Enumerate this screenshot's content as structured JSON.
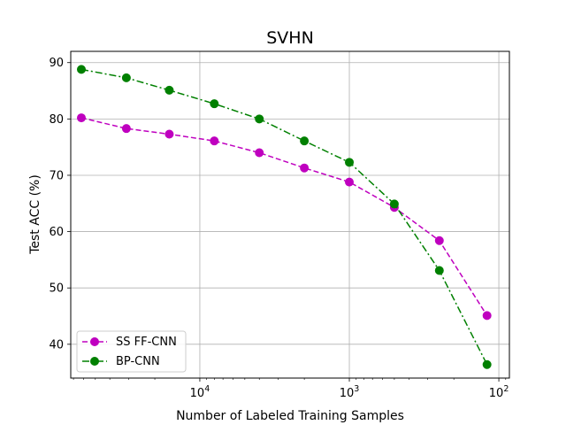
{
  "chart_data": {
    "type": "line",
    "title": "SVHN",
    "xlabel": "Number of Labeled Training Samples",
    "ylabel": "Test ACC (%)",
    "xscale": "log",
    "x_inverted": true,
    "xlim": [
      73000,
      85
    ],
    "ylim": [
      34,
      92
    ],
    "grid": true,
    "legend_position": "lower-left",
    "xticks": [
      {
        "value": 10000,
        "base": "10",
        "exp": "4"
      },
      {
        "value": 1000,
        "base": "10",
        "exp": "3"
      },
      {
        "value": 100,
        "base": "10",
        "exp": "2"
      }
    ],
    "yticks": [
      40,
      50,
      60,
      70,
      80,
      90
    ],
    "x": [
      62000,
      31000,
      16000,
      8000,
      4000,
      2000,
      1000,
      500,
      250,
      120
    ],
    "series": [
      {
        "name": "SS FF-CNN",
        "color": "#bf00bf",
        "linestyle": "dashed",
        "values": [
          80.2,
          78.3,
          77.3,
          76.1,
          74.0,
          71.3,
          68.8,
          64.3,
          58.4,
          45.1
        ]
      },
      {
        "name": "BP-CNN",
        "color": "#008000",
        "linestyle": "dashdot",
        "values": [
          88.8,
          87.3,
          85.1,
          82.7,
          80.0,
          76.1,
          72.3,
          64.9,
          53.1,
          36.4
        ]
      }
    ]
  }
}
